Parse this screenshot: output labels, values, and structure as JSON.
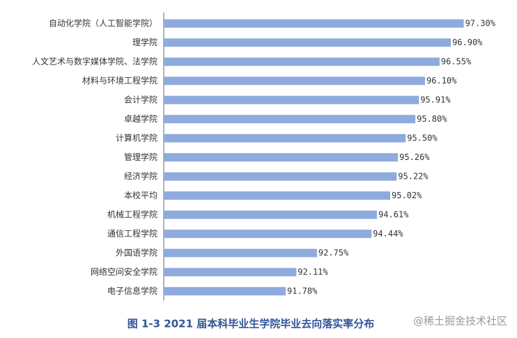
{
  "chart_data": {
    "type": "bar",
    "orientation": "horizontal",
    "title": "图 1-3 2021 届本科毕业生学院毕业去向落实率分布",
    "watermark": "@稀土掘金技术社区",
    "categories": [
      "自动化学院（人工智能学院）",
      "理学院",
      "人文艺术与数字媒体学院、法学院",
      "材料与环境工程学院",
      "会计学院",
      "卓越学院",
      "计算机学院",
      "管理学院",
      "经济学院",
      "本校平均",
      "机械工程学院",
      "通信工程学院",
      "外国语学院",
      "网络空间安全学院",
      "电子信息学院"
    ],
    "values": [
      97.3,
      96.9,
      96.55,
      96.1,
      95.91,
      95.8,
      95.5,
      95.26,
      95.22,
      95.02,
      94.61,
      94.44,
      92.75,
      92.11,
      91.78
    ],
    "value_labels": [
      "97.30%",
      "96.90%",
      "96.55%",
      "96.10%",
      "95.91%",
      "95.80%",
      "95.50%",
      "95.26%",
      "95.22%",
      "95.02%",
      "94.61%",
      "94.44%",
      "92.75%",
      "92.11%",
      "91.78%"
    ],
    "color": "#8faadc",
    "xlim": [
      88,
      98
    ]
  }
}
